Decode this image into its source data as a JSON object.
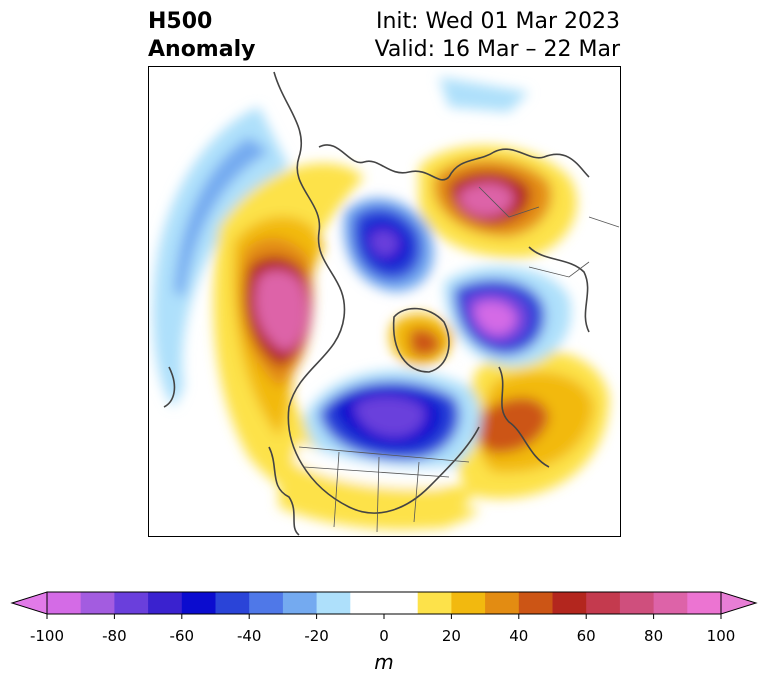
{
  "title": {
    "left_line1": "H500",
    "left_line2": "Anomaly",
    "right_line1": "Init: Wed 01 Mar 2023",
    "right_line2": "Valid: 16 Mar – 22 Mar"
  },
  "colorbar": {
    "unit": "m",
    "ticks": [
      "-100",
      "-80",
      "-60",
      "-40",
      "-20",
      "0",
      "20",
      "40",
      "60",
      "80",
      "100"
    ],
    "min": -100,
    "max": 100,
    "step": 10,
    "extend": "both",
    "colors": [
      "#d46be6",
      "#a35ce0",
      "#6a3fdc",
      "#3a22cf",
      "#0b0ccf",
      "#2a44d8",
      "#4f78e8",
      "#74aaf0",
      "#aee0fb",
      "#ffffff",
      "#ffffff",
      "#fde24a",
      "#f2b90f",
      "#e38c12",
      "#cc5515",
      "#b3261e",
      "#c43a4e",
      "#cf4f7d",
      "#dd63a8",
      "#ec74d2"
    ],
    "under_color": "#e27ae9",
    "over_color": "#e87ed6"
  },
  "map": {
    "projection": "north-polar-stereographic",
    "field": "500 hPa geopotential height anomaly"
  }
}
